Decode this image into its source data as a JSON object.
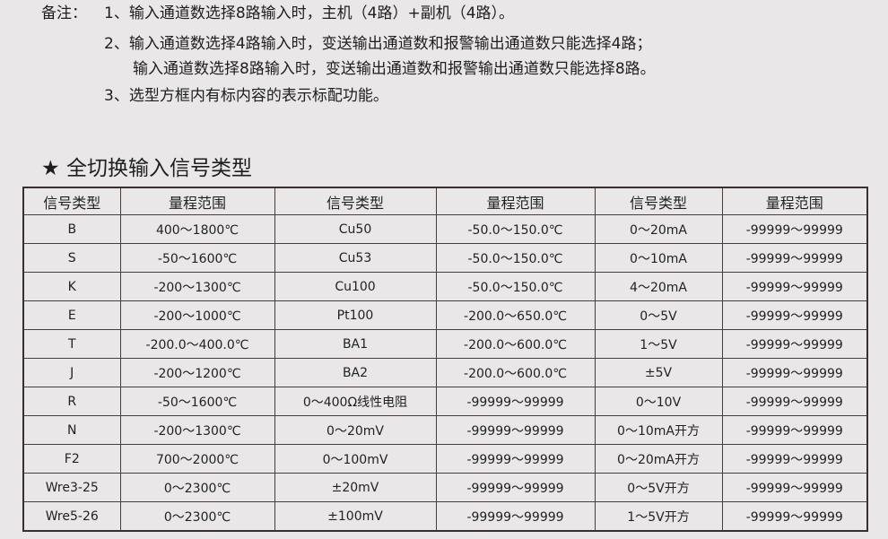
{
  "notes": {
    "label": "备注：",
    "lines": [
      "1、输入通道数选择8路输入时，主机（4路）+副机（4路）。",
      "2、输入通道数选择4路输入时，变送输出通道数和报警输出通道数只能选择4路；",
      "输入通道数选择8路输入时，变送输出通道数和报警输出通道数只能选择8路。",
      "3、选型方框内有标内容的表示标配功能。"
    ]
  },
  "section": {
    "icon": "star-icon",
    "star": "★",
    "title": "全切换输入信号类型"
  },
  "table": {
    "headers": [
      "信号类型",
      "量程范围",
      "信号类型",
      "量程范围",
      "信号类型",
      "量程范围"
    ],
    "rows": [
      [
        "B",
        "400～1800℃",
        "Cu50",
        "-50.0～150.0℃",
        "0～20mA",
        "-99999～99999"
      ],
      [
        "S",
        "-50～1600℃",
        "Cu53",
        "-50.0～150.0℃",
        "0～10mA",
        "-99999～99999"
      ],
      [
        "K",
        "-200～1300℃",
        "Cu100",
        "-50.0～150.0℃",
        "4～20mA",
        "-99999～99999"
      ],
      [
        "E",
        "-200～1000℃",
        "Pt100",
        "-200.0～650.0℃",
        "0～5V",
        "-99999～99999"
      ],
      [
        "T",
        "-200.0～400.0℃",
        "BA1",
        "-200.0～600.0℃",
        "1～5V",
        "-99999～99999"
      ],
      [
        "J",
        "-200～1200℃",
        "BA2",
        "-200.0～600.0℃",
        "±5V",
        "-99999～99999"
      ],
      [
        "R",
        "-50～1600℃",
        "0～400Ω线性电阻",
        "-99999～99999",
        "0～10V",
        "-99999～99999"
      ],
      [
        "N",
        "-200～1300℃",
        "0～20mV",
        "-99999～99999",
        "0～10mA开方",
        "-99999～99999"
      ],
      [
        "F2",
        "700～2000℃",
        "0～100mV",
        "-99999～99999",
        "0～20mA开方",
        "-99999～99999"
      ],
      [
        "Wre3-25",
        "0～2300℃",
        "±20mV",
        "-99999～99999",
        "0～5V开方",
        "-99999～99999"
      ],
      [
        "Wre5-26",
        "0～2300℃",
        "±100mV",
        "-99999～99999",
        "1～5V开方",
        "-99999～99999"
      ]
    ]
  }
}
